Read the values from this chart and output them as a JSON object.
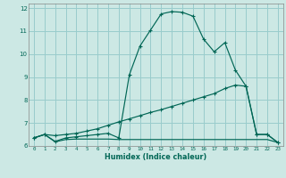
{
  "title": "",
  "xlabel": "Humidex (Indice chaleur)",
  "bg_color": "#cce8e4",
  "grid_color": "#99cccc",
  "line_color": "#006655",
  "xlim": [
    -0.5,
    23.5
  ],
  "ylim": [
    6.0,
    12.2
  ],
  "xticks": [
    0,
    1,
    2,
    3,
    4,
    5,
    6,
    7,
    8,
    9,
    10,
    11,
    12,
    13,
    14,
    15,
    16,
    17,
    18,
    19,
    20,
    21,
    22,
    23
  ],
  "yticks": [
    6,
    7,
    8,
    9,
    10,
    11,
    12
  ],
  "curve1_x": [
    0,
    1,
    2,
    3,
    4,
    5,
    6,
    7,
    8,
    9,
    10,
    11,
    12,
    13,
    14,
    15,
    16,
    17,
    18,
    19,
    20,
    21,
    22,
    23
  ],
  "curve1_y": [
    6.35,
    6.5,
    6.2,
    6.35,
    6.4,
    6.45,
    6.5,
    6.55,
    6.35,
    9.1,
    10.35,
    11.05,
    11.75,
    11.85,
    11.82,
    11.65,
    10.65,
    10.1,
    10.5,
    9.3,
    8.6,
    6.5,
    6.5,
    6.15
  ],
  "curve2_x": [
    0,
    1,
    2,
    3,
    4,
    5,
    6,
    7,
    8,
    9,
    10,
    11,
    12,
    13,
    14,
    15,
    16,
    17,
    18,
    19,
    20,
    21,
    22,
    23
  ],
  "curve2_y": [
    6.35,
    6.5,
    6.45,
    6.5,
    6.55,
    6.65,
    6.75,
    6.9,
    7.05,
    7.18,
    7.32,
    7.46,
    7.58,
    7.72,
    7.86,
    8.0,
    8.14,
    8.28,
    8.5,
    8.65,
    8.6,
    6.5,
    6.5,
    6.15
  ],
  "curve3_x": [
    0,
    1,
    2,
    3,
    4,
    5,
    6,
    7,
    8,
    9,
    10,
    11,
    12,
    13,
    14,
    15,
    16,
    17,
    18,
    19,
    20,
    21,
    22,
    23
  ],
  "curve3_y": [
    6.35,
    6.5,
    6.18,
    6.28,
    6.3,
    6.3,
    6.3,
    6.3,
    6.28,
    6.28,
    6.28,
    6.28,
    6.28,
    6.28,
    6.28,
    6.28,
    6.28,
    6.28,
    6.28,
    6.28,
    6.28,
    6.28,
    6.28,
    6.15
  ]
}
